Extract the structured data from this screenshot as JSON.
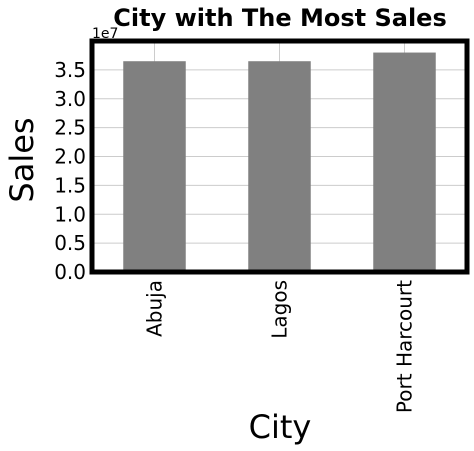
{
  "chart_data": {
    "type": "bar",
    "title": "City with The Most Sales",
    "xlabel": "City",
    "ylabel": "Sales",
    "exponent_label": "1e7",
    "categories": [
      "Abuja",
      "Lagos",
      "Port Harcourt"
    ],
    "values": [
      36500000,
      36500000,
      38000000
    ],
    "ylim": [
      0,
      40000000
    ],
    "yticks": [
      0,
      5000000,
      10000000,
      15000000,
      20000000,
      25000000,
      30000000,
      35000000
    ],
    "ytick_labels": [
      "0.0",
      "0.5",
      "1.0",
      "1.5",
      "2.0",
      "2.5",
      "3.0",
      "3.5"
    ],
    "grid": true,
    "bar_color": "#808080"
  }
}
